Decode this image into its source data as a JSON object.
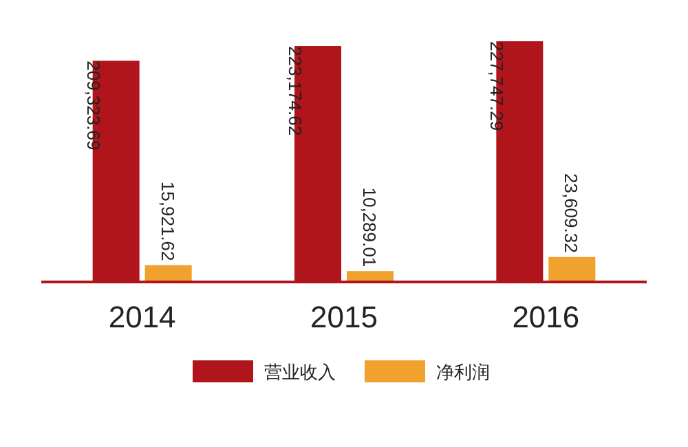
{
  "chart_data": {
    "type": "bar",
    "categories": [
      "2014",
      "2015",
      "2016"
    ],
    "series": [
      {
        "name": "营业收入",
        "color": "#b0151b",
        "values": [
          209323.69,
          223174.62,
          227747.29
        ],
        "value_labels": [
          "209,323.69",
          "223,174.62",
          "227,747.29"
        ]
      },
      {
        "name": "净利润",
        "color": "#f0a12e",
        "values": [
          15921.62,
          10289.01,
          23609.32
        ],
        "value_labels": [
          "15,921.62",
          "10,289.01",
          "23,609.32"
        ]
      }
    ],
    "legend": "bottom"
  }
}
